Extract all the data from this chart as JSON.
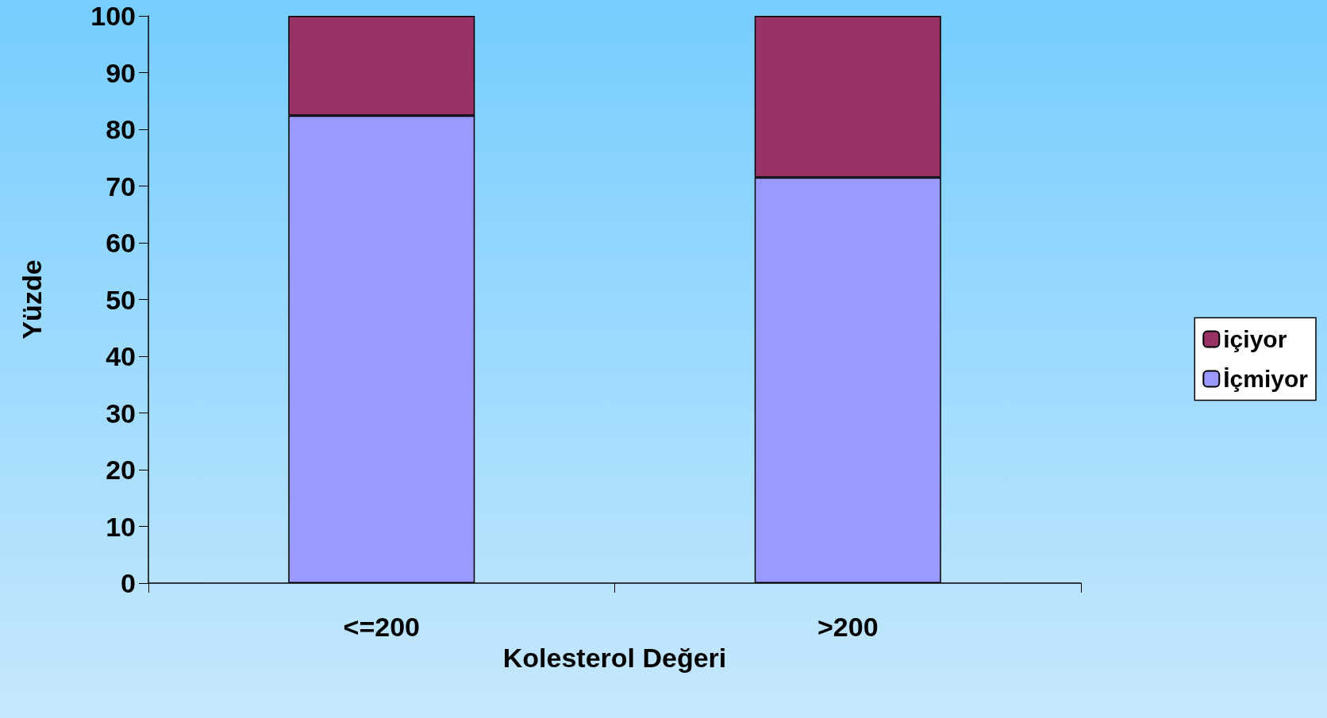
{
  "chart_data": {
    "type": "bar",
    "stacked": true,
    "xlabel": "Kolesterol Değeri",
    "ylabel": "Yüzde",
    "categories": [
      "<=200",
      ">200"
    ],
    "series": [
      {
        "name": "İçmiyor",
        "color": "#9999ff",
        "values": [
          82.4,
          71.5
        ]
      },
      {
        "name": "içiyor",
        "color": "#993366",
        "values": [
          17.6,
          28.5
        ]
      }
    ],
    "ylim": [
      0,
      100
    ],
    "yticks": [
      0,
      10,
      20,
      30,
      40,
      50,
      60,
      70,
      80,
      90,
      100
    ],
    "grid": false,
    "legend": "right"
  }
}
